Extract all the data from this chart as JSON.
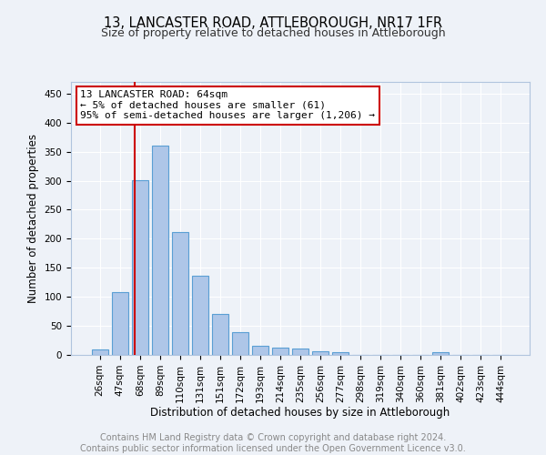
{
  "title1": "13, LANCASTER ROAD, ATTLEBOROUGH, NR17 1FR",
  "title2": "Size of property relative to detached houses in Attleborough",
  "xlabel": "Distribution of detached houses by size in Attleborough",
  "ylabel": "Number of detached properties",
  "bar_labels": [
    "26sqm",
    "47sqm",
    "68sqm",
    "89sqm",
    "110sqm",
    "131sqm",
    "151sqm",
    "172sqm",
    "193sqm",
    "214sqm",
    "235sqm",
    "256sqm",
    "277sqm",
    "298sqm",
    "319sqm",
    "340sqm",
    "360sqm",
    "381sqm",
    "402sqm",
    "423sqm",
    "444sqm"
  ],
  "bar_values": [
    10,
    108,
    301,
    360,
    212,
    136,
    70,
    39,
    15,
    12,
    11,
    7,
    5,
    0,
    0,
    0,
    0,
    5,
    0,
    0,
    0
  ],
  "bar_color": "#aec6e8",
  "bar_edge_color": "#5a9fd4",
  "vline_x": 1.75,
  "vline_color": "#cc0000",
  "annotation_text": "13 LANCASTER ROAD: 64sqm\n← 5% of detached houses are smaller (61)\n95% of semi-detached houses are larger (1,206) →",
  "annotation_box_edge_color": "#cc0000",
  "annotation_box_face_color": "#ffffff",
  "ylim": [
    0,
    470
  ],
  "yticks": [
    0,
    50,
    100,
    150,
    200,
    250,
    300,
    350,
    400,
    450
  ],
  "footer_text": "Contains HM Land Registry data © Crown copyright and database right 2024.\nContains public sector information licensed under the Open Government Licence v3.0.",
  "bg_color": "#eef2f8",
  "grid_color": "#ffffff",
  "title1_fontsize": 10.5,
  "title2_fontsize": 9,
  "xlabel_fontsize": 8.5,
  "ylabel_fontsize": 8.5,
  "tick_fontsize": 7.5,
  "footer_fontsize": 7,
  "annotation_fontsize": 8
}
